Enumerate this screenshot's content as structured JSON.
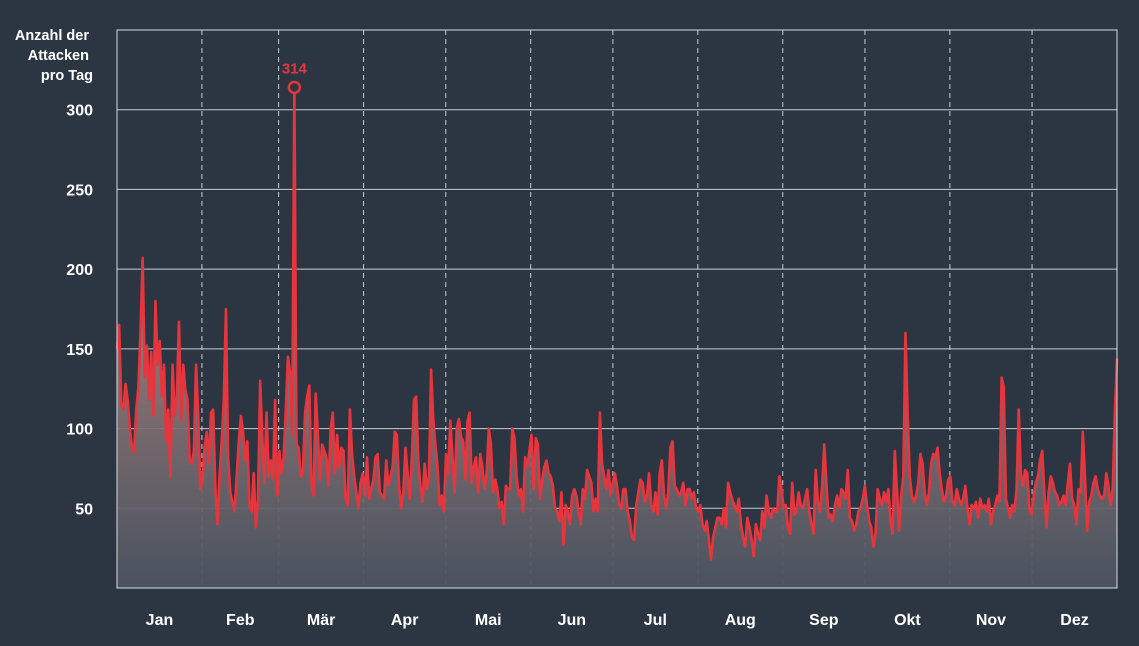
{
  "chart_data": {
    "type": "area",
    "ylabel": [
      "Anzahl der",
      "Attacken",
      "pro Tag"
    ],
    "ylim": [
      0,
      350
    ],
    "yticks": [
      50,
      100,
      150,
      200,
      250,
      300
    ],
    "grid": true,
    "months": [
      "Jan",
      "Feb",
      "Mär",
      "Apr",
      "Mai",
      "Jun",
      "Jul",
      "Aug",
      "Sep",
      "Okt",
      "Nov",
      "Dez"
    ],
    "annotation": {
      "label": "314",
      "day": 83,
      "value": 314
    },
    "series": [
      {
        "line_color": "#e8353d",
        "values": [
          150,
          165,
          115,
          112,
          128,
          118,
          100,
          88,
          85,
          112,
          126,
          160,
          207,
          132,
          152,
          118,
          148,
          108,
          180,
          140,
          155,
          120,
          140,
          92,
          112,
          70,
          140,
          108,
          120,
          167,
          105,
          140,
          124,
          118,
          80,
          78,
          86,
          140,
          108,
          62,
          68,
          88,
          98,
          78,
          110,
          112,
          64,
          40,
          70,
          92,
          118,
          175,
          82,
          60,
          54,
          48,
          70,
          92,
          108,
          98,
          80,
          92,
          52,
          48,
          72,
          38,
          56,
          130,
          95,
          66,
          110,
          70,
          80,
          68,
          118,
          58,
          86,
          72,
          82,
          112,
          145,
          135,
          95,
          314,
          90,
          88,
          70,
          72,
          110,
          120,
          127,
          66,
          58,
          122,
          96,
          68,
          90,
          86,
          82,
          64,
          100,
          110,
          72,
          96,
          76,
          88,
          86,
          56,
          52,
          112,
          84,
          70,
          60,
          50,
          66,
          72,
          58,
          82,
          56,
          62,
          68,
          82,
          84,
          60,
          58,
          56,
          80,
          64,
          70,
          76,
          98,
          96,
          64,
          50,
          60,
          88,
          72,
          56,
          82,
          118,
          120,
          80,
          64,
          54,
          78,
          62,
          70,
          137,
          106,
          90,
          76,
          52,
          58,
          48,
          84,
          72,
          105,
          82,
          60,
          100,
          106,
          95,
          92,
          68,
          104,
          110,
          66,
          76,
          82,
          60,
          84,
          76,
          62,
          72,
          100,
          90,
          60,
          68,
          62,
          50,
          54,
          40,
          64,
          62,
          62,
          100,
          94,
          70,
          58,
          62,
          48,
          82,
          76,
          86,
          96,
          62,
          94,
          90,
          56,
          68,
          76,
          80,
          72,
          70,
          64,
          50,
          48,
          42,
          60,
          27,
          52,
          48,
          40,
          58,
          62,
          58,
          48,
          40,
          62,
          56,
          74,
          70,
          66,
          48,
          56,
          48,
          110,
          78,
          70,
          62,
          74,
          58,
          66,
          72,
          64,
          52,
          50,
          62,
          62,
          48,
          42,
          32,
          30,
          52,
          60,
          68,
          66,
          54,
          58,
          72,
          52,
          48,
          60,
          46,
          72,
          80,
          58,
          50,
          60,
          88,
          92,
          64,
          62,
          58,
          60,
          66,
          52,
          62,
          62,
          56,
          60,
          50,
          48,
          52,
          40,
          36,
          42,
          30,
          18,
          32,
          38,
          44,
          44,
          40,
          50,
          38,
          66,
          60,
          55,
          52,
          48,
          56,
          40,
          32,
          26,
          44,
          38,
          30,
          20,
          40,
          34,
          30,
          48,
          38,
          58,
          48,
          44,
          50,
          48,
          48,
          70,
          62,
          50,
          52,
          38,
          34,
          66,
          46,
          48,
          60,
          52,
          50,
          56,
          62,
          48,
          40,
          34,
          74,
          54,
          48,
          64,
          90,
          66,
          44,
          46,
          42,
          52,
          58,
          50,
          62,
          60,
          56,
          74,
          44,
          42,
          36,
          40,
          48,
          50,
          56,
          64,
          52,
          42,
          38,
          26,
          34,
          62,
          56,
          52,
          60,
          54,
          62,
          42,
          34,
          86,
          62,
          36,
          58,
          70,
          160,
          110,
          70,
          58,
          54,
          58,
          66,
          84,
          78,
          60,
          52,
          60,
          78,
          84,
          82,
          88,
          72,
          62,
          54,
          58,
          68,
          70,
          54,
          52,
          62,
          56,
          52,
          56,
          64,
          50,
          40,
          52,
          50,
          54,
          44,
          56,
          50,
          52,
          48,
          56,
          40,
          48,
          52,
          58,
          54,
          132,
          126,
          56,
          50,
          44,
          52,
          48,
          62,
          112,
          72,
          64,
          74,
          72,
          50,
          46,
          58,
          66,
          70,
          80,
          86,
          60,
          38,
          60,
          70,
          66,
          60,
          58,
          52,
          54,
          58,
          52,
          66,
          78,
          56,
          52,
          40,
          62,
          60,
          98,
          70,
          36,
          54,
          58,
          66,
          70,
          62,
          58,
          56,
          58,
          72,
          64,
          52,
          62,
          110,
          144
        ]
      }
    ]
  }
}
